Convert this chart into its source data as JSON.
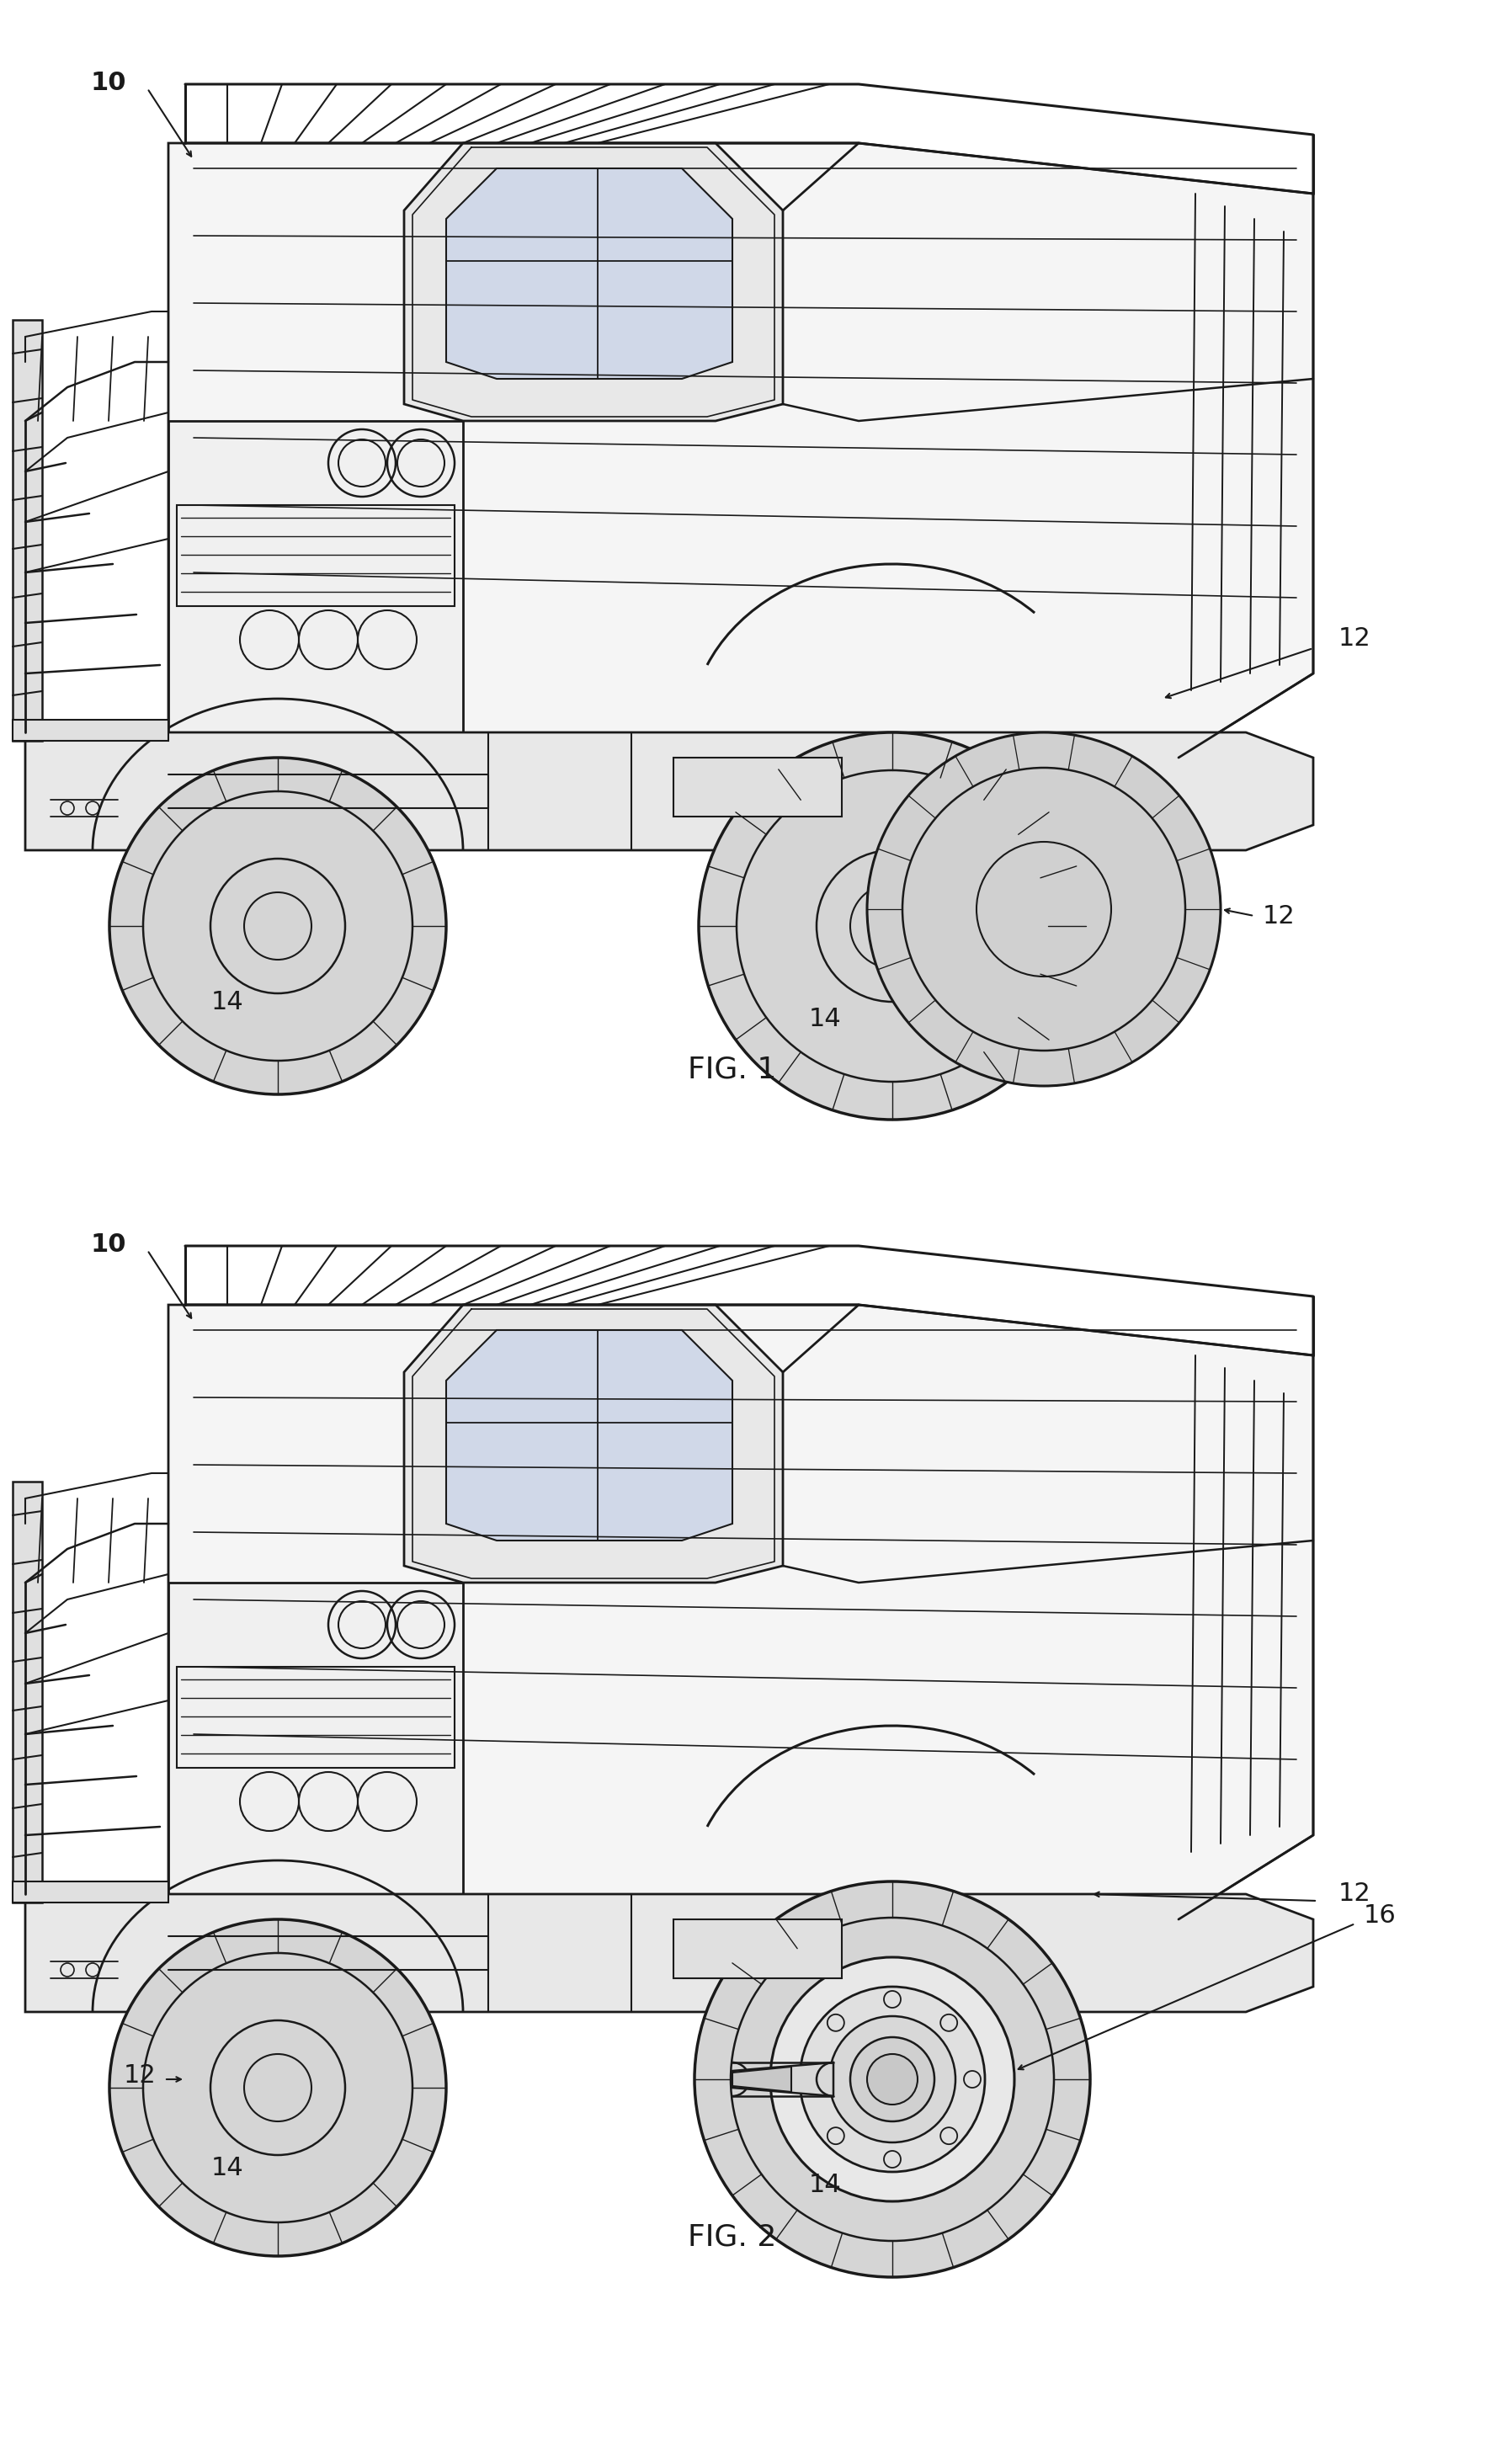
{
  "background_color": "#ffffff",
  "line_color": "#1a1a1a",
  "fig_width": 17.9,
  "fig_height": 29.27,
  "fig1_label": "FIG. 1",
  "fig2_label": "FIG. 2",
  "label_10_1": "10",
  "label_12_1a": "12",
  "label_12_1b": "12",
  "label_14_1a": "14",
  "label_14_1b": "14",
  "label_10_2": "10",
  "label_12_2a": "12",
  "label_12_2b": "12",
  "label_14_2a": "14",
  "label_14_2b": "14",
  "label_16_2": "16",
  "font_size_label": 22,
  "font_size_fig": 26,
  "lw_main": 1.8,
  "lw_thin": 0.9
}
